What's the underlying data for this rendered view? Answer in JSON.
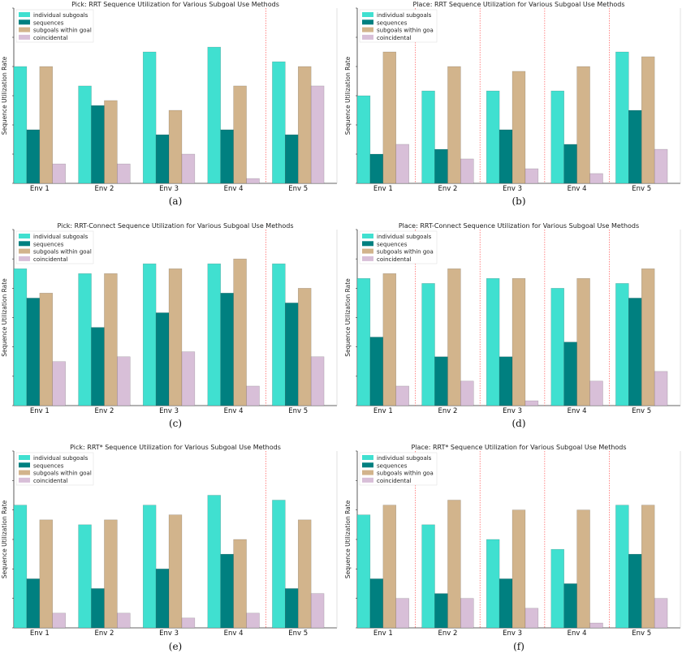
{
  "colors": {
    "individual subgoals": "#40e0d0",
    "sequences": "#008080",
    "subgoals within goal": "#d2b48c",
    "coincidental": "#d8bfd8",
    "separator": "#ff6b6b"
  },
  "chart_data": [
    {
      "type": "bar",
      "panel": "(a)",
      "title": "Pick: RRT Sequence Utilization for Various Subgoal Use Methods",
      "ylabel": "Sequence Utilization Rate",
      "xlabel": "",
      "ylim": [
        0,
        1.2
      ],
      "legend": "top-left",
      "grid": false,
      "separators_after": [
        4
      ],
      "categories": [
        "Env 1",
        "Env 2",
        "Env 3",
        "Env 4",
        "Env 5"
      ],
      "legend_labels": [
        "individual subgoals",
        "sequences",
        "subgoals within goal",
        "coincidental"
      ],
      "series": [
        {
          "name": "individual subgoals",
          "values": [
            0.8,
            0.667,
            0.9,
            0.933,
            0.833
          ]
        },
        {
          "name": "sequences",
          "values": [
            0.367,
            0.533,
            0.333,
            0.367,
            0.333
          ]
        },
        {
          "name": "subgoals within goal",
          "values": [
            0.8,
            0.567,
            0.5,
            0.667,
            0.8
          ]
        },
        {
          "name": "coincidental",
          "values": [
            0.133,
            0.133,
            0.2,
            0.033,
            0.667
          ]
        }
      ]
    },
    {
      "type": "bar",
      "panel": "(b)",
      "title": "Place: RRT Sequence Utilization for Various Subgoal Use Methods",
      "ylabel": "Sequence Utilization Rate",
      "xlabel": "",
      "ylim": [
        0,
        1.2
      ],
      "legend": "top-left",
      "grid": false,
      "separators_after": [
        1,
        2,
        3,
        4
      ],
      "categories": [
        "Env 1",
        "Env 2",
        "Env 3",
        "Env 4",
        "Env 5"
      ],
      "legend_labels": [
        "individual subgoals",
        "sequences",
        "subgoals within goa",
        "coincidental"
      ],
      "series": [
        {
          "name": "individual subgoals",
          "values": [
            0.6,
            0.633,
            0.633,
            0.633,
            0.9
          ]
        },
        {
          "name": "sequences",
          "values": [
            0.2,
            0.233,
            0.367,
            0.267,
            0.5
          ]
        },
        {
          "name": "subgoals within goal",
          "values": [
            0.9,
            0.8,
            0.767,
            0.8,
            0.867
          ]
        },
        {
          "name": "coincidental",
          "values": [
            0.267,
            0.167,
            0.1,
            0.067,
            0.233
          ]
        }
      ]
    },
    {
      "type": "bar",
      "panel": "(c)",
      "title": "Pick: RRT-Connect Sequence Utilization for Various Subgoal Use Methods",
      "ylabel": "Sequence Utilization Rate",
      "xlabel": "",
      "ylim": [
        0,
        1.2
      ],
      "legend": "top-left",
      "grid": false,
      "separators_after": [
        4
      ],
      "categories": [
        "Env 1",
        "Env 2",
        "Env 3",
        "Env 4",
        "Env 5"
      ],
      "legend_labels": [
        "individual subgoals",
        "sequences",
        "subgoals within goal",
        "coincidental"
      ],
      "series": [
        {
          "name": "individual subgoals",
          "values": [
            0.933,
            0.9,
            0.967,
            0.967,
            0.967
          ]
        },
        {
          "name": "sequences",
          "values": [
            0.733,
            0.533,
            0.633,
            0.767,
            0.7
          ]
        },
        {
          "name": "subgoals within goal",
          "values": [
            0.767,
            0.9,
            0.933,
            1.0,
            0.8
          ]
        },
        {
          "name": "coincidental",
          "values": [
            0.3,
            0.333,
            0.367,
            0.133,
            0.333
          ]
        }
      ]
    },
    {
      "type": "bar",
      "panel": "(d)",
      "title": "Place: RRT-Connect Sequence Utilization for Various Subgoal Use Methods",
      "ylabel": "Sequence Utilization Rate",
      "xlabel": "",
      "ylim": [
        0,
        1.2
      ],
      "legend": "top-left",
      "grid": false,
      "separators_after": [
        1,
        2,
        3,
        4
      ],
      "categories": [
        "Env 1",
        "Env 2",
        "Env 3",
        "Env 4",
        "Env 5"
      ],
      "legend_labels": [
        "individual subgoals",
        "sequences",
        "subgoals within goa",
        "coincidental"
      ],
      "series": [
        {
          "name": "individual subgoals",
          "values": [
            0.867,
            0.833,
            0.867,
            0.8,
            0.833
          ]
        },
        {
          "name": "sequences",
          "values": [
            0.467,
            0.333,
            0.333,
            0.433,
            0.733
          ]
        },
        {
          "name": "subgoals within goal",
          "values": [
            0.9,
            0.933,
            0.867,
            0.867,
            0.933
          ]
        },
        {
          "name": "coincidental",
          "values": [
            0.133,
            0.167,
            0.033,
            0.167,
            0.233
          ]
        }
      ]
    },
    {
      "type": "bar",
      "panel": "(e)",
      "title": "Pick: RRT* Sequence Utilization for Various Subgoal Use Methods",
      "ylabel": "Sequence Utilization Rate",
      "xlabel": "",
      "ylim": [
        0,
        1.2
      ],
      "legend": "top-left",
      "grid": false,
      "separators_after": [
        4
      ],
      "categories": [
        "Env 1",
        "Env 2",
        "Env 3",
        "Env 4",
        "Env 5"
      ],
      "legend_labels": [
        "individual subgoals",
        "sequences",
        "subgoals within goal",
        "coincidental"
      ],
      "series": [
        {
          "name": "individual subgoals",
          "values": [
            0.833,
            0.7,
            0.833,
            0.9,
            0.867
          ]
        },
        {
          "name": "sequences",
          "values": [
            0.333,
            0.267,
            0.4,
            0.5,
            0.267
          ]
        },
        {
          "name": "subgoals within goal",
          "values": [
            0.733,
            0.733,
            0.767,
            0.6,
            0.733
          ]
        },
        {
          "name": "coincidental",
          "values": [
            0.1,
            0.1,
            0.067,
            0.1,
            0.233
          ]
        }
      ]
    },
    {
      "type": "bar",
      "panel": "(f)",
      "title": "Place: RRT* Sequence Utilization for Various Subgoal Use Methods",
      "ylabel": "Sequence Utilization Rate",
      "xlabel": "",
      "ylim": [
        0,
        1.2
      ],
      "legend": "top-left",
      "grid": false,
      "separators_after": [
        1,
        2,
        3,
        4
      ],
      "categories": [
        "Env 1",
        "Env 2",
        "Env 3",
        "Env 4",
        "Env 5"
      ],
      "legend_labels": [
        "individual subgoals",
        "sequences",
        "subgoals within goa",
        "coincidental"
      ],
      "series": [
        {
          "name": "individual subgoals",
          "values": [
            0.767,
            0.7,
            0.6,
            0.533,
            0.833
          ]
        },
        {
          "name": "sequences",
          "values": [
            0.333,
            0.233,
            0.333,
            0.3,
            0.5
          ]
        },
        {
          "name": "subgoals within goal",
          "values": [
            0.833,
            0.867,
            0.8,
            0.8,
            0.833
          ]
        },
        {
          "name": "coincidental",
          "values": [
            0.2,
            0.2,
            0.133,
            0.033,
            0.2
          ]
        }
      ]
    }
  ]
}
